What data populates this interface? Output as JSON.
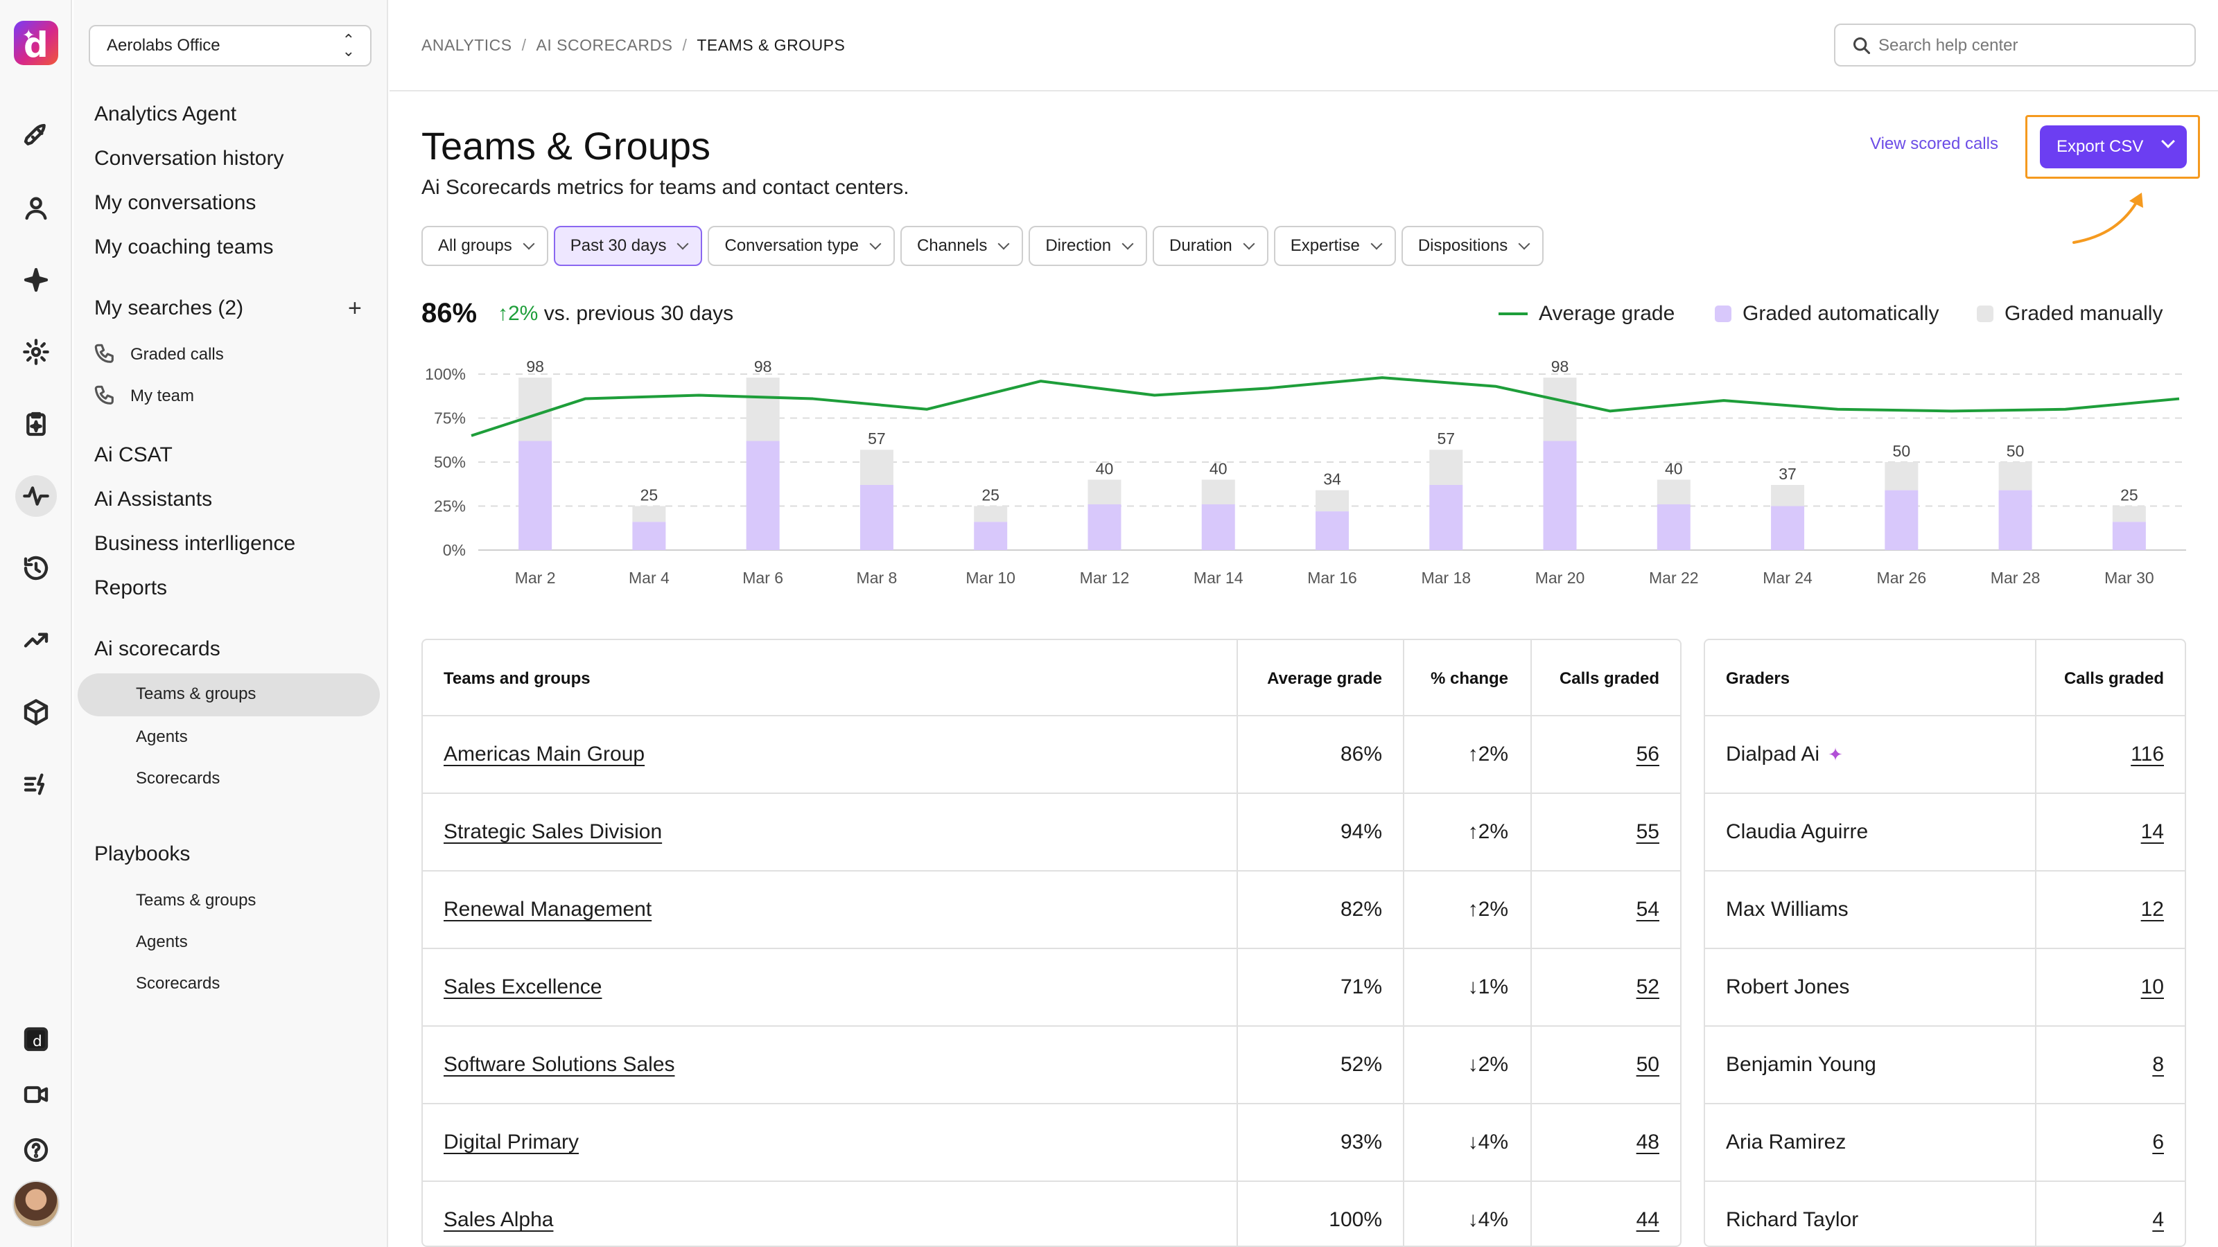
{
  "app": {
    "logo_letter": "d"
  },
  "sidebar": {
    "workspace": "Aerolabs Office",
    "items_top": [
      "Analytics Agent",
      "Conversation history",
      "My conversations",
      "My coaching teams"
    ],
    "my_searches": {
      "label": "My searches (2)",
      "children": [
        "Graded calls",
        "My team"
      ]
    },
    "items_mid": [
      "Ai CSAT",
      "Ai Assistants",
      "Business interlligence",
      "Reports"
    ],
    "scorecards": {
      "label": "Ai scorecards",
      "children": [
        "Teams & groups",
        "Agents",
        "Scorecards"
      ],
      "selected": "Teams & groups"
    },
    "playbooks": {
      "label": "Playbooks",
      "children": [
        "Teams & groups",
        "Agents",
        "Scorecards"
      ]
    }
  },
  "breadcrumb": {
    "items": [
      "ANALYTICS",
      "AI SCORECARDS",
      "TEAMS & GROUPS"
    ],
    "separator": "/"
  },
  "search": {
    "placeholder": "Search help center"
  },
  "page": {
    "title": "Teams & Groups",
    "subtitle": "Ai Scorecards metrics for teams and contact centers.",
    "view_link": "View scored calls",
    "export_label": "Export CSV"
  },
  "filters": [
    {
      "label": "All groups",
      "active": false
    },
    {
      "label": "Past 30 days",
      "active": true
    },
    {
      "label": "Conversation type",
      "active": false
    },
    {
      "label": "Channels",
      "active": false
    },
    {
      "label": "Direction",
      "active": false
    },
    {
      "label": "Duration",
      "active": false
    },
    {
      "label": "Expertise",
      "active": false
    },
    {
      "label": "Dispositions",
      "active": false
    }
  ],
  "summary": {
    "value": "86%",
    "delta": "2%",
    "delta_text": "vs. previous 30 days"
  },
  "legend": [
    "Average grade",
    "Graded automatically",
    "Graded manually"
  ],
  "colors": {
    "accent": "#6c3ef2",
    "line": "#1e9e3a",
    "auto": "#d8c8fb",
    "manual": "#e6e6e6",
    "positive": "#1e9e3a",
    "negative": "#d2212d",
    "highlight": "#f59a1f"
  },
  "chart_data": {
    "type": "bar",
    "y_ticks": [
      "100%",
      "75%",
      "50%",
      "25%",
      "0%"
    ],
    "ylim": [
      0,
      100
    ],
    "x_tick_labels": [
      "Mar 2",
      "Mar 4",
      "Mar 6",
      "Mar 8",
      "Mar 10",
      "Mar 12",
      "Mar 14",
      "Mar 16",
      "Mar 18",
      "Mar 20",
      "Mar 22",
      "Mar 24",
      "Mar 26",
      "Mar 28",
      "Mar 30"
    ],
    "totals": [
      98,
      25,
      98,
      57,
      25,
      40,
      40,
      34,
      57,
      98,
      40,
      37,
      50,
      50,
      25
    ],
    "series": [
      {
        "name": "Graded automatically",
        "values": [
          62,
          16,
          62,
          37,
          16,
          26,
          26,
          22,
          37,
          62,
          26,
          25,
          34,
          34,
          16
        ]
      },
      {
        "name": "Graded manually",
        "values": [
          36,
          9,
          36,
          20,
          9,
          14,
          14,
          12,
          20,
          36,
          14,
          12,
          16,
          16,
          9
        ]
      },
      {
        "name": "Average grade",
        "type": "line",
        "x": [
          "Mar 1",
          "Mar 3",
          "Mar 5",
          "Mar 7",
          "Mar 9",
          "Mar 11",
          "Mar 13",
          "Mar 15",
          "Mar 17",
          "Mar 19",
          "Mar 21",
          "Mar 23",
          "Mar 25",
          "Mar 27",
          "Mar 29",
          "Mar 31"
        ],
        "values": [
          65,
          86,
          88,
          86,
          80,
          96,
          88,
          92,
          98,
          93,
          79,
          85,
          80,
          79,
          80,
          86
        ]
      }
    ]
  },
  "teams_table": {
    "headers": [
      "Teams and groups",
      "Average grade",
      "% change",
      "Calls graded"
    ],
    "rows": [
      {
        "name": "Americas Main Group",
        "grade": "86%",
        "dir": "up",
        "change": "2%",
        "calls": "56",
        "muted": false
      },
      {
        "name": "Strategic Sales Division",
        "grade": "94%",
        "dir": "up",
        "change": "2%",
        "calls": "55",
        "muted": false
      },
      {
        "name": "Renewal Management",
        "grade": "82%",
        "dir": "up",
        "change": "2%",
        "calls": "54",
        "muted": true
      },
      {
        "name": "Sales Excellence",
        "grade": "71%",
        "dir": "down",
        "change": "1%",
        "calls": "52",
        "muted": false
      },
      {
        "name": "Software Solutions Sales",
        "grade": "52%",
        "dir": "down",
        "change": "2%",
        "calls": "50",
        "muted": false
      },
      {
        "name": "Digital Primary",
        "grade": "93%",
        "dir": "down",
        "change": "4%",
        "calls": "48",
        "muted": false
      },
      {
        "name": "Sales Alpha",
        "grade": "100%",
        "dir": "down",
        "change": "4%",
        "calls": "44",
        "muted": false
      }
    ]
  },
  "graders_table": {
    "headers": [
      "Graders",
      "Calls graded"
    ],
    "rows": [
      {
        "name": "Dialpad Ai",
        "calls": "116",
        "ai_icon": true
      },
      {
        "name": "Claudia Aguirre",
        "calls": "14"
      },
      {
        "name": "Max Williams",
        "calls": "12"
      },
      {
        "name": "Robert Jones",
        "calls": "10"
      },
      {
        "name": "Benjamin Young",
        "calls": "8"
      },
      {
        "name": "Aria Ramirez",
        "calls": "6"
      },
      {
        "name": "Richard Taylor",
        "calls": "4"
      }
    ]
  }
}
